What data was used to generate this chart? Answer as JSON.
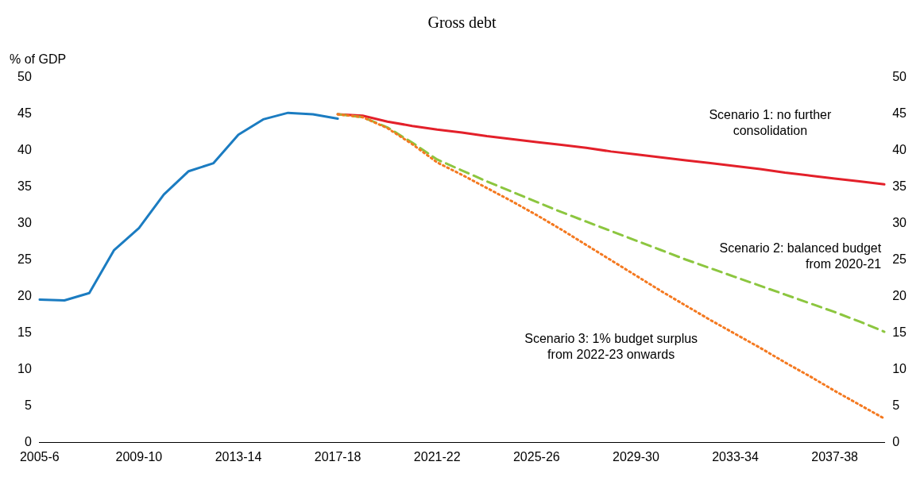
{
  "chart_data": {
    "type": "line",
    "title": "Gross debt",
    "ylabel": "% of GDP",
    "categories": [
      "2005-6",
      null,
      null,
      null,
      "2009-10",
      null,
      null,
      null,
      "2013-14",
      null,
      null,
      null,
      "2017-18",
      null,
      null,
      null,
      "2021-22",
      null,
      null,
      null,
      "2025-26",
      null,
      null,
      null,
      "2029-30",
      null,
      null,
      null,
      "2033-34",
      null,
      null,
      null,
      "2037-38",
      null,
      null
    ],
    "series": [
      {
        "color": "#1b7cc1",
        "line_style": "solid",
        "values": [
          19.6,
          19.5,
          20.5,
          26.4,
          29.4,
          34.0,
          37.2,
          38.3,
          42.2,
          44.3,
          45.2,
          45.0,
          44.4,
          null,
          null,
          null,
          null,
          null,
          null,
          null,
          null,
          null,
          null,
          null,
          null,
          null,
          null,
          null,
          null,
          null,
          null,
          null,
          null,
          null,
          null
        ]
      },
      {
        "name": "Scenario 1: no further consolidation",
        "color": "#e3202a",
        "line_style": "solid",
        "values": [
          null,
          null,
          null,
          null,
          null,
          null,
          null,
          null,
          null,
          null,
          null,
          null,
          45.0,
          44.8,
          44.0,
          43.4,
          42.9,
          42.5,
          42.0,
          41.6,
          41.2,
          40.8,
          40.4,
          39.9,
          39.5,
          39.1,
          38.7,
          38.3,
          37.9,
          37.5,
          37.0,
          36.6,
          36.2,
          35.8,
          35.4
        ]
      },
      {
        "name": "Scenario 2: balanced budget from 2020-21",
        "color": "#8cc63f",
        "line_style": "dashed",
        "values": [
          null,
          null,
          null,
          null,
          null,
          null,
          null,
          null,
          null,
          null,
          null,
          null,
          45.0,
          44.6,
          43.2,
          41.1,
          38.8,
          37.3,
          35.8,
          34.4,
          33.0,
          31.6,
          30.3,
          29.0,
          27.7,
          26.4,
          25.1,
          23.9,
          22.7,
          21.5,
          20.3,
          19.1,
          17.9,
          16.6,
          15.2
        ]
      },
      {
        "name": "Scenario 3: 1% budget surplus from 2022-23 onwards",
        "color": "#f47920",
        "line_style": "dotted",
        "values": [
          null,
          null,
          null,
          null,
          null,
          null,
          null,
          null,
          null,
          null,
          null,
          null,
          45.0,
          44.6,
          43.1,
          40.9,
          38.4,
          36.7,
          34.9,
          33.1,
          31.2,
          29.2,
          27.1,
          25.0,
          22.9,
          20.8,
          18.8,
          16.8,
          14.9,
          13.0,
          11.0,
          9.1,
          7.1,
          5.2,
          3.3
        ]
      }
    ],
    "ylim": [
      0,
      50
    ],
    "yticks": [
      0,
      5,
      10,
      15,
      20,
      25,
      30,
      35,
      40,
      45,
      50
    ],
    "y2lim": [
      0,
      50
    ],
    "y2ticks": [
      0,
      5,
      10,
      15,
      20,
      25,
      30,
      35,
      40,
      45,
      50
    ],
    "grid": false,
    "legend": false
  }
}
